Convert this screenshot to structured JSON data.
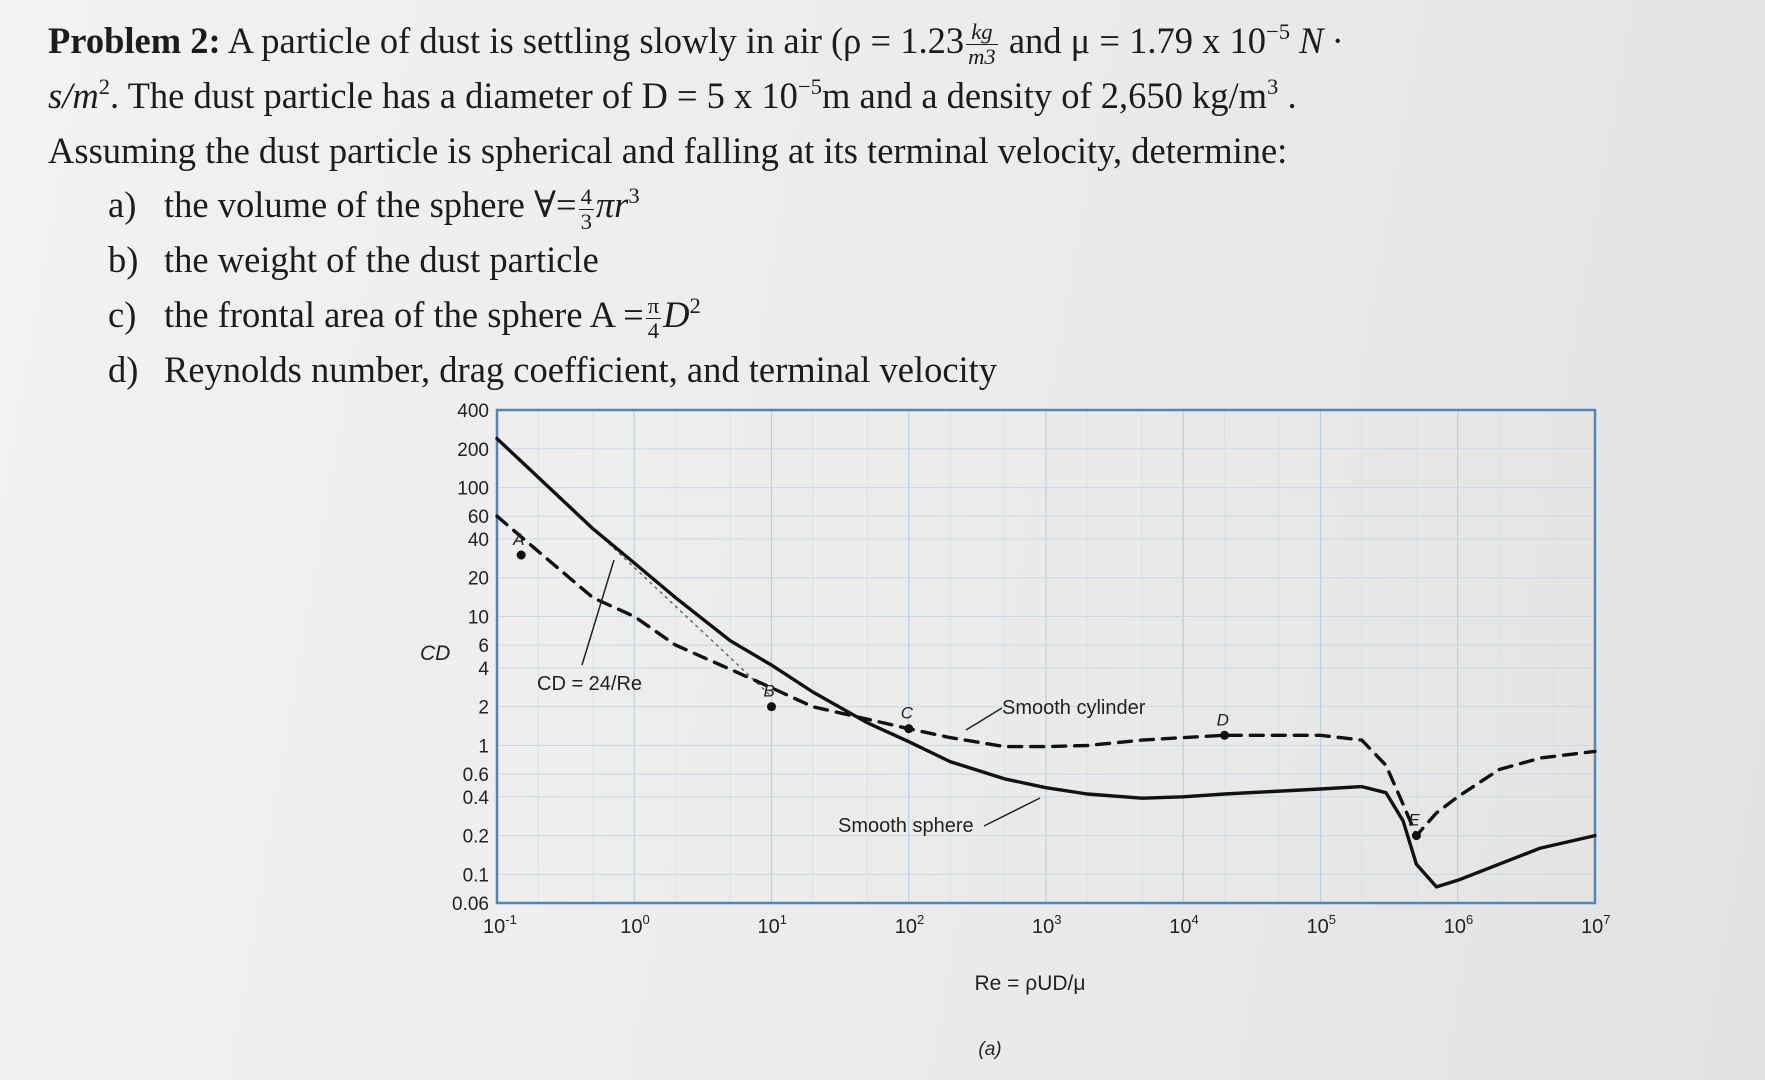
{
  "problem": {
    "lead": "Problem 2:",
    "line1": "A particle of dust is settling slowly in air (ρ = 1.23",
    "rho_unit_num": "kg",
    "rho_unit_den": "m3",
    "line1b": "and μ = 1.79 x 10",
    "mu_exp": "−5",
    "mu_unit": "N ·",
    "line2a": "s/m",
    "line2a_exp": "2",
    "line2b": ". The dust particle has a diameter of D = 5 x 10",
    "d_exp": "−5",
    "line2c": "m and a density of 2,650 kg/m",
    "density_exp": "3",
    "line2d": " .",
    "line3": "Assuming the dust particle is spherical and falling at its terminal velocity, determine:",
    "items": [
      {
        "label": "a)",
        "text": "the volume of the sphere ∀=",
        "frac_num": "4",
        "frac_den": "3",
        "tail": "πr",
        "tail_exp": "3"
      },
      {
        "label": "b)",
        "text": "the weight of the dust particle"
      },
      {
        "label": "c)",
        "text": "the frontal area of the sphere A =",
        "frac_num": "π",
        "frac_den": "4",
        "tail": "D",
        "tail_exp": "2"
      },
      {
        "label": "d)",
        "text": "Reynolds number, drag coefficient, and terminal velocity"
      }
    ]
  },
  "chart_data": {
    "type": "line",
    "title": "",
    "ylabel": "C_D",
    "xlabel": "Re = ρUD/μ",
    "caption": "(a)",
    "xscale": "log",
    "yscale": "log",
    "xlim": [
      0.1,
      10000000
    ],
    "ylim": [
      0.06,
      400
    ],
    "y_tick_labels": [
      "400",
      "200",
      "100",
      "60",
      "40",
      "20",
      "10",
      "6",
      "4",
      "2",
      "1",
      "0.6",
      "0.4",
      "0.2",
      "0.1",
      "0.06"
    ],
    "y_tick_values": [
      400,
      200,
      100,
      60,
      40,
      20,
      10,
      6,
      4,
      2,
      1,
      0.6,
      0.4,
      0.2,
      0.1,
      0.06
    ],
    "x_tick_base": "10",
    "x_tick_exponents": [
      "-1",
      "0",
      "1",
      "2",
      "3",
      "4",
      "5",
      "6",
      "7"
    ],
    "x_tick_values": [
      0.1,
      1,
      10,
      100,
      1000,
      10000,
      100000,
      1000000,
      10000000
    ],
    "grid": true,
    "series": [
      {
        "name": "Smooth sphere",
        "style": "solid",
        "color": "#111111",
        "x": [
          0.1,
          0.2,
          0.5,
          1,
          2,
          5,
          10,
          20,
          50,
          100,
          200,
          500,
          1000,
          2000,
          5000,
          10000,
          20000,
          100000,
          200000,
          300000,
          400000,
          500000,
          700000,
          1000000,
          2000000,
          4000000,
          10000000
        ],
        "y": [
          240,
          120,
          48,
          26,
          14,
          6.5,
          4.2,
          2.6,
          1.5,
          1.07,
          0.75,
          0.55,
          0.47,
          0.42,
          0.39,
          0.4,
          0.42,
          0.46,
          0.48,
          0.43,
          0.26,
          0.12,
          0.08,
          0.09,
          0.12,
          0.16,
          0.2
        ]
      },
      {
        "name": "Smooth cylinder",
        "style": "dashed",
        "color": "#111111",
        "x": [
          0.1,
          0.2,
          0.5,
          1,
          2,
          5,
          10,
          20,
          50,
          100,
          200,
          500,
          1000,
          2000,
          5000,
          10000,
          20000,
          50000,
          100000,
          200000,
          300000,
          400000,
          500000,
          700000,
          1000000,
          2000000,
          4000000,
          10000000
        ],
        "y": [
          60,
          32,
          14,
          10,
          6,
          3.9,
          2.8,
          2.0,
          1.6,
          1.35,
          1.15,
          0.98,
          0.98,
          1.0,
          1.1,
          1.15,
          1.2,
          1.2,
          1.2,
          1.1,
          0.7,
          0.35,
          0.2,
          0.3,
          0.4,
          0.65,
          0.8,
          0.9
        ]
      },
      {
        "name": "C_D = 24/Re",
        "style": "dotted",
        "color": "#111111",
        "x": [
          0.1,
          1,
          10
        ],
        "y": [
          240,
          24,
          2.4
        ]
      }
    ],
    "point_labels": [
      {
        "text": "A",
        "x": 0.15,
        "y": 30
      },
      {
        "text": "B",
        "x": 10,
        "y": 2.0
      },
      {
        "text": "C",
        "x": 100,
        "y": 1.35
      },
      {
        "text": "D",
        "x": 20000,
        "y": 1.2
      },
      {
        "text": "E",
        "x": 500000,
        "y": 0.2
      }
    ],
    "annotations": {
      "cd24_label": "C_D = 24/Re",
      "cylinder_label": "Smooth cylinder",
      "sphere_label": "Smooth sphere"
    }
  }
}
